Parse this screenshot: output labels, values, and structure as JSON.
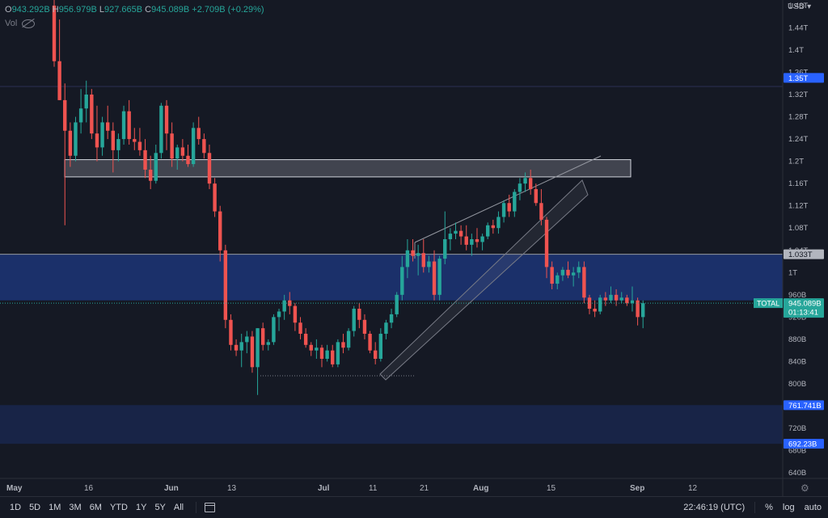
{
  "ohlc": {
    "o_label": "O",
    "o": "943.292B",
    "h_label": "H",
    "h": "956.979B",
    "l_label": "L",
    "l": "927.665B",
    "c_label": "C",
    "c": "945.089B",
    "change": "+2.709B (+0.29%)"
  },
  "vol_label": "Vol",
  "currency": "USD",
  "price_axis": {
    "ticks": [
      "1.48T",
      "1.44T",
      "1.4T",
      "1.36T",
      "1.32T",
      "1.28T",
      "1.24T",
      "1.2T",
      "1.16T",
      "1.12T",
      "1.08T",
      "1.04T",
      "1T",
      "960B",
      "920B",
      "880B",
      "840B",
      "800B",
      "760B",
      "720B",
      "680B",
      "640B"
    ],
    "ticks_values": [
      1480,
      1440,
      1400,
      1360,
      1320,
      1280,
      1240,
      1200,
      1160,
      1120,
      1080,
      1040,
      1000,
      960,
      920,
      880,
      840,
      800,
      760,
      720,
      680,
      640
    ],
    "labels": [
      {
        "text": "1.35T",
        "value": 1350,
        "bg": "#2962ff",
        "fg": "#ffffff"
      },
      {
        "text": "1.033T",
        "value": 1033,
        "bg": "#b2b5be",
        "fg": "#131722"
      },
      {
        "text": "945.089B",
        "sub": "01:13:41",
        "value": 945.089,
        "bg": "#26a69a",
        "fg": "#ffffff"
      },
      {
        "text": "761.741B",
        "value": 761.741,
        "bg": "#2962ff",
        "fg": "#ffffff"
      },
      {
        "text": "692.23B",
        "value": 692.23,
        "bg": "#2962ff",
        "fg": "#ffffff"
      }
    ],
    "symbol_label": "TOTAL"
  },
  "time_axis": [
    "May",
    "16",
    "Jun",
    "13",
    "Jul",
    "11",
    "21",
    "Aug",
    "15",
    "Sep",
    "12"
  ],
  "chart_data": {
    "type": "candlestick",
    "unit": "USD (billions)",
    "ylim": [
      630,
      1490
    ],
    "up_color": "#26a69a",
    "down_color": "#ef5350",
    "candles": [
      [
        1480,
        1500,
        1370,
        1380
      ],
      [
        1380,
        1455,
        1310,
        1310
      ],
      [
        1310,
        1340,
        1085,
        1255
      ],
      [
        1255,
        1270,
        1190,
        1210
      ],
      [
        1210,
        1280,
        1200,
        1270
      ],
      [
        1270,
        1330,
        1250,
        1295
      ],
      [
        1295,
        1345,
        1270,
        1320
      ],
      [
        1320,
        1330,
        1240,
        1250
      ],
      [
        1250,
        1300,
        1200,
        1225
      ],
      [
        1225,
        1280,
        1210,
        1270
      ],
      [
        1270,
        1300,
        1240,
        1255
      ],
      [
        1255,
        1270,
        1180,
        1220
      ],
      [
        1220,
        1250,
        1200,
        1240
      ],
      [
        1240,
        1300,
        1230,
        1290
      ],
      [
        1290,
        1310,
        1230,
        1240
      ],
      [
        1240,
        1260,
        1220,
        1235
      ],
      [
        1235,
        1260,
        1210,
        1220
      ],
      [
        1220,
        1240,
        1170,
        1185
      ],
      [
        1185,
        1210,
        1150,
        1165
      ],
      [
        1165,
        1230,
        1160,
        1215
      ],
      [
        1215,
        1305,
        1205,
        1300
      ],
      [
        1300,
        1310,
        1220,
        1250
      ],
      [
        1250,
        1270,
        1190,
        1205
      ],
      [
        1205,
        1230,
        1185,
        1225
      ],
      [
        1225,
        1240,
        1200,
        1210
      ],
      [
        1210,
        1230,
        1190,
        1195
      ],
      [
        1195,
        1270,
        1190,
        1260
      ],
      [
        1260,
        1280,
        1230,
        1240
      ],
      [
        1240,
        1250,
        1205,
        1215
      ],
      [
        1215,
        1230,
        1150,
        1160
      ],
      [
        1160,
        1170,
        1100,
        1110
      ],
      [
        1110,
        1120,
        1020,
        1040
      ],
      [
        1040,
        1050,
        900,
        915
      ],
      [
        915,
        925,
        860,
        870
      ],
      [
        870,
        880,
        850,
        860
      ],
      [
        860,
        890,
        830,
        875
      ],
      [
        875,
        895,
        855,
        885
      ],
      [
        885,
        895,
        820,
        830
      ],
      [
        830,
        900,
        780,
        900
      ],
      [
        900,
        910,
        860,
        870
      ],
      [
        870,
        880,
        860,
        875
      ],
      [
        875,
        925,
        870,
        920
      ],
      [
        920,
        935,
        895,
        930
      ],
      [
        930,
        960,
        915,
        950
      ],
      [
        950,
        965,
        925,
        940
      ],
      [
        940,
        945,
        895,
        910
      ],
      [
        910,
        920,
        880,
        890
      ],
      [
        890,
        900,
        865,
        870
      ],
      [
        870,
        875,
        850,
        860
      ],
      [
        860,
        880,
        845,
        865
      ],
      [
        865,
        870,
        830,
        845
      ],
      [
        845,
        870,
        840,
        860
      ],
      [
        860,
        870,
        830,
        835
      ],
      [
        835,
        880,
        830,
        875
      ],
      [
        875,
        890,
        855,
        865
      ],
      [
        865,
        900,
        860,
        895
      ],
      [
        895,
        940,
        885,
        935
      ],
      [
        935,
        945,
        900,
        915
      ],
      [
        915,
        925,
        880,
        890
      ],
      [
        890,
        895,
        855,
        860
      ],
      [
        860,
        875,
        835,
        845
      ],
      [
        845,
        900,
        840,
        890
      ],
      [
        890,
        915,
        880,
        910
      ],
      [
        910,
        935,
        900,
        925
      ],
      [
        925,
        965,
        920,
        960
      ],
      [
        960,
        1030,
        950,
        1010
      ],
      [
        1010,
        1060,
        990,
        1040
      ],
      [
        1040,
        1060,
        1020,
        1030
      ],
      [
        1030,
        1050,
        995,
        1035
      ],
      [
        1035,
        1060,
        1000,
        1010
      ],
      [
        1010,
        1030,
        1000,
        1020
      ],
      [
        1020,
        1040,
        950,
        960
      ],
      [
        960,
        1030,
        950,
        1025
      ],
      [
        1025,
        1110,
        1015,
        1060
      ],
      [
        1060,
        1080,
        1040,
        1070
      ],
      [
        1070,
        1090,
        1060,
        1075
      ],
      [
        1075,
        1085,
        1050,
        1065
      ],
      [
        1065,
        1085,
        1040,
        1050
      ],
      [
        1050,
        1070,
        1030,
        1060
      ],
      [
        1060,
        1080,
        1045,
        1055
      ],
      [
        1055,
        1070,
        1040,
        1065
      ],
      [
        1065,
        1090,
        1060,
        1085
      ],
      [
        1085,
        1095,
        1070,
        1080
      ],
      [
        1080,
        1110,
        1070,
        1100
      ],
      [
        1100,
        1130,
        1090,
        1125
      ],
      [
        1125,
        1140,
        1100,
        1110
      ],
      [
        1110,
        1150,
        1100,
        1145
      ],
      [
        1145,
        1170,
        1130,
        1160
      ],
      [
        1160,
        1180,
        1145,
        1170
      ],
      [
        1170,
        1185,
        1140,
        1150
      ],
      [
        1150,
        1160,
        1120,
        1125
      ],
      [
        1125,
        1150,
        1085,
        1095
      ],
      [
        1095,
        1100,
        990,
        1010
      ],
      [
        1010,
        1020,
        970,
        980
      ],
      [
        980,
        1000,
        970,
        995
      ],
      [
        995,
        1010,
        985,
        1005
      ],
      [
        1005,
        1020,
        990,
        995
      ],
      [
        995,
        1010,
        975,
        1000
      ],
      [
        1000,
        1020,
        990,
        1010
      ],
      [
        1010,
        1020,
        945,
        955
      ],
      [
        955,
        960,
        925,
        935
      ],
      [
        935,
        950,
        920,
        930
      ],
      [
        930,
        960,
        925,
        955
      ],
      [
        955,
        965,
        940,
        950
      ],
      [
        950,
        975,
        945,
        960
      ],
      [
        960,
        970,
        940,
        950
      ],
      [
        950,
        965,
        945,
        955
      ],
      [
        955,
        960,
        940,
        945
      ],
      [
        945,
        975,
        930,
        950
      ],
      [
        950,
        955,
        905,
        920
      ],
      [
        920,
        950,
        900,
        945
      ]
    ],
    "zones": [
      {
        "from": 761.741,
        "to": 692.23,
        "color": "rgba(41,98,255,0.16)"
      },
      {
        "from": 1033,
        "to": 950,
        "color": "rgba(41,98,255,0.32)"
      },
      {
        "from": 1203,
        "to": 1172,
        "color": "rgba(120,123,134,0.45)"
      }
    ],
    "current_price": 945.089
  }
}
